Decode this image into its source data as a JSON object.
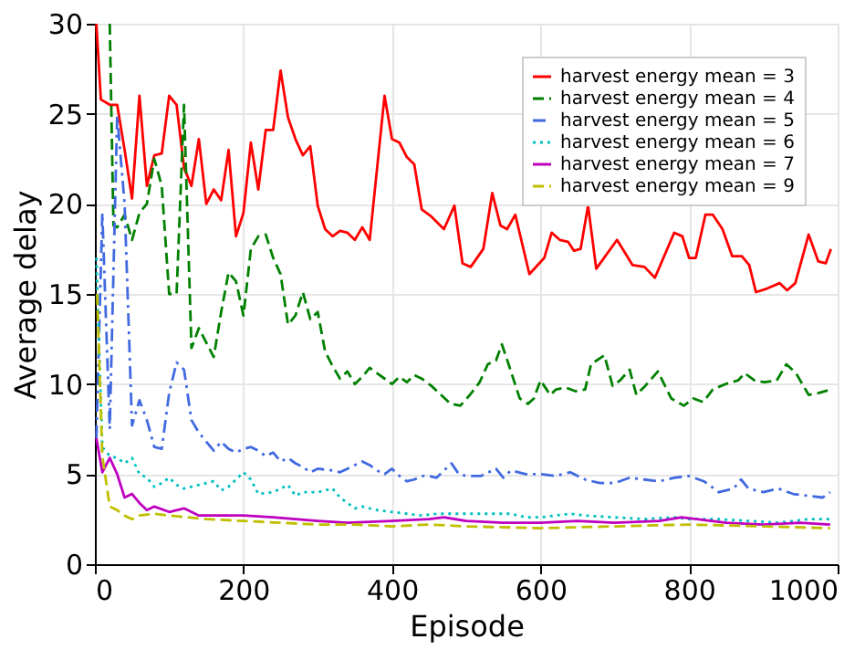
{
  "chart_data": {
    "type": "line",
    "xlabel": "Episode",
    "ylabel": "Average delay",
    "xlim": [
      0,
      1000
    ],
    "ylim": [
      0,
      30
    ],
    "xticks": [
      0,
      200,
      400,
      600,
      800,
      1000
    ],
    "yticks": [
      0,
      5,
      10,
      15,
      20,
      25,
      30
    ],
    "grid": true,
    "legend": "top right",
    "marker": "none",
    "series": [
      {
        "name": "harvest energy mean = 3",
        "color": "#ff0000",
        "line_style": "solid",
        "x": [
          2,
          8,
          20,
          30,
          40,
          50,
          60,
          70,
          80,
          90,
          100,
          110,
          120,
          130,
          140,
          150,
          160,
          170,
          180,
          190,
          200,
          210,
          220,
          230,
          240,
          250,
          260,
          270,
          280,
          290,
          300,
          310,
          320,
          330,
          340,
          350,
          360,
          370,
          380,
          390,
          400,
          410,
          420,
          430,
          440,
          453,
          470,
          484,
          495,
          506,
          523,
          535,
          546,
          555,
          566,
          585,
          605,
          615,
          626,
          637,
          645,
          654,
          664,
          675,
          703,
          724,
          740,
          754,
          780,
          791,
          800,
          809,
          822,
          832,
          845,
          858,
          871,
          881,
          890,
          905,
          922,
          932,
          943,
          961,
          974,
          984,
          991
        ],
        "values": [
          30,
          25.8,
          25.5,
          25.5,
          23,
          20.3,
          26,
          21,
          22.7,
          22.8,
          26,
          25.5,
          22,
          21,
          23.6,
          20,
          20.8,
          20.2,
          23,
          18.2,
          19.5,
          23.4,
          20.8,
          24.1,
          24.1,
          27.4,
          24.8,
          23.6,
          22.7,
          23.2,
          19.9,
          18.6,
          18.2,
          18.5,
          18.4,
          18,
          18.7,
          18,
          22,
          26,
          23.6,
          23.4,
          22.6,
          22.2,
          19.7,
          19.3,
          18.6,
          19.9,
          16.7,
          16.5,
          17.5,
          20.6,
          18.8,
          18.6,
          19.4,
          16.1,
          17,
          18.4,
          18,
          17.9,
          17.4,
          17.5,
          19.9,
          16.4,
          18,
          16.6,
          16.5,
          15.9,
          18.4,
          18.2,
          17,
          17,
          19.4,
          19.4,
          18.6,
          17.1,
          17.1,
          16.6,
          15.1,
          15.3,
          15.6,
          15.2,
          15.6,
          18.3,
          16.8,
          16.7,
          17.5
        ]
      },
      {
        "name": "harvest energy mean = 4",
        "color": "#008000",
        "line_style": "dashed",
        "x": [
          20,
          25,
          30,
          40,
          50,
          60,
          70,
          80,
          90,
          100,
          110,
          120,
          130,
          140,
          150,
          160,
          170,
          180,
          190,
          200,
          210,
          220,
          230,
          240,
          250,
          260,
          270,
          280,
          290,
          300,
          310,
          320,
          330,
          340,
          350,
          360,
          370,
          380,
          390,
          400,
          410,
          420,
          430,
          440,
          453,
          466,
          479,
          492,
          505,
          518,
          529,
          540,
          548,
          557,
          572,
          583,
          591,
          600,
          613,
          621,
          634,
          647,
          660,
          668,
          686,
          697,
          707,
          720,
          729,
          741,
          758,
          776,
          793,
          806,
          819,
          832,
          849,
          866,
          875,
          888,
          901,
          918,
          931,
          944,
          961,
          974,
          991
        ],
        "values": [
          30,
          18.8,
          18.7,
          19.4,
          18,
          19.5,
          20,
          22.5,
          21,
          15,
          15,
          25.5,
          12,
          13.1,
          12.3,
          11.5,
          14,
          16.2,
          15.7,
          13.8,
          17.5,
          18.2,
          18.3,
          17,
          16.1,
          13.3,
          13.8,
          15.1,
          13.6,
          14,
          11.8,
          11,
          10.3,
          10.7,
          10,
          10.4,
          10.9,
          10.6,
          10.3,
          10,
          10.4,
          10.1,
          10.5,
          10.3,
          9.9,
          9.4,
          8.9,
          8.8,
          9.4,
          10.1,
          11.1,
          11.3,
          12.2,
          11.1,
          9.2,
          8.9,
          9.2,
          10.2,
          9.4,
          9.7,
          9.8,
          9.6,
          9.7,
          11.1,
          11.6,
          9.9,
          10.2,
          10.8,
          9.4,
          9.9,
          10.7,
          9.2,
          8.8,
          9.2,
          9,
          9.7,
          10,
          10.2,
          10.6,
          10.2,
          10.1,
          10.2,
          11.1,
          10.6,
          9.4,
          9.5,
          9.7
        ]
      },
      {
        "name": "harvest energy mean = 5",
        "color": "#4169e1",
        "line_style": "dashdot",
        "x": [
          2,
          10,
          20,
          30,
          40,
          50,
          60,
          70,
          80,
          90,
          100,
          110,
          120,
          130,
          140,
          150,
          160,
          170,
          180,
          190,
          200,
          210,
          220,
          230,
          240,
          250,
          260,
          270,
          280,
          290,
          300,
          320,
          330,
          340,
          350,
          360,
          370,
          380,
          390,
          400,
          410,
          420,
          430,
          440,
          450,
          460,
          470,
          480,
          490,
          500,
          520,
          540,
          550,
          560,
          580,
          600,
          620,
          640,
          660,
          680,
          700,
          720,
          740,
          760,
          780,
          800,
          820,
          840,
          860,
          870,
          880,
          900,
          920,
          940,
          960,
          980,
          990
        ],
        "values": [
          7,
          19.5,
          7.5,
          24.9,
          20,
          7.7,
          9.1,
          8,
          6.5,
          6.4,
          9.5,
          11.2,
          10.8,
          8,
          7.3,
          6.8,
          6.3,
          6.8,
          6.4,
          6.2,
          6.4,
          6.5,
          6.3,
          6,
          6.2,
          5.7,
          5.9,
          5.6,
          5.4,
          5.1,
          5.3,
          5.2,
          5.1,
          5.3,
          5.5,
          5.7,
          5.5,
          5.2,
          5,
          5.3,
          4.9,
          4.6,
          4.7,
          4.9,
          4.9,
          4.8,
          5.2,
          5.6,
          5,
          4.9,
          4.9,
          5.3,
          4.8,
          5.2,
          5,
          5,
          4.9,
          5.1,
          4.7,
          4.5,
          4.5,
          4.8,
          4.7,
          4.6,
          4.8,
          4.9,
          4.6,
          4,
          4.2,
          4.7,
          4.2,
          4,
          4.2,
          3.9,
          3.8,
          3.7,
          4
        ]
      },
      {
        "name": "harvest energy mean = 6",
        "color": "#00bfbf",
        "line_style": "dotted",
        "x": [
          2,
          10,
          20,
          30,
          40,
          50,
          60,
          70,
          80,
          90,
          100,
          110,
          120,
          140,
          160,
          170,
          180,
          200,
          210,
          220,
          240,
          260,
          270,
          280,
          300,
          320,
          330,
          350,
          360,
          380,
          400,
          420,
          440,
          460,
          500,
          520,
          560,
          580,
          600,
          640,
          660,
          700,
          740,
          780,
          800,
          840,
          880,
          920,
          960,
          990
        ],
        "values": [
          17,
          6.5,
          6,
          5.9,
          5.6,
          5.9,
          5,
          4.8,
          4.3,
          4.5,
          4.8,
          4.4,
          4.2,
          4.4,
          4.6,
          4.1,
          4.3,
          5.1,
          4.7,
          3.9,
          4,
          4.4,
          3.8,
          4,
          4,
          4.2,
          3.7,
          3.1,
          3.2,
          3,
          2.9,
          2.8,
          2.7,
          2.8,
          2.8,
          2.8,
          2.8,
          2.6,
          2.6,
          2.8,
          2.7,
          2.6,
          2.5,
          2.6,
          2.5,
          2.5,
          2.4,
          2.3,
          2.5,
          2.5
        ]
      },
      {
        "name": "harvest energy mean = 7",
        "color": "#bf00bf",
        "line_style": "solid",
        "x": [
          2,
          10,
          20,
          30,
          40,
          50,
          60,
          70,
          80,
          100,
          120,
          140,
          160,
          200,
          240,
          300,
          340,
          400,
          450,
          470,
          500,
          550,
          600,
          650,
          700,
          760,
          790,
          810,
          850,
          900,
          950,
          990
        ],
        "values": [
          7,
          5.1,
          5.9,
          5,
          3.7,
          3.9,
          3.4,
          3,
          3.2,
          2.9,
          3.1,
          2.7,
          2.7,
          2.7,
          2.6,
          2.4,
          2.3,
          2.4,
          2.5,
          2.6,
          2.4,
          2.3,
          2.3,
          2.4,
          2.3,
          2.4,
          2.6,
          2.5,
          2.3,
          2.2,
          2.3,
          2.2
        ]
      },
      {
        "name": "harvest energy mean = 9",
        "color": "#bfbf00",
        "line_style": "dashed",
        "x": [
          3,
          10,
          20,
          30,
          40,
          50,
          60,
          80,
          100,
          150,
          200,
          250,
          300,
          350,
          400,
          450,
          500,
          600,
          700,
          800,
          900,
          990
        ],
        "values": [
          15,
          6,
          3.2,
          3,
          2.7,
          2.5,
          2.7,
          2.8,
          2.7,
          2.5,
          2.4,
          2.3,
          2.2,
          2.2,
          2.1,
          2.2,
          2.1,
          2,
          2.1,
          2.2,
          2.1,
          2
        ]
      }
    ]
  }
}
